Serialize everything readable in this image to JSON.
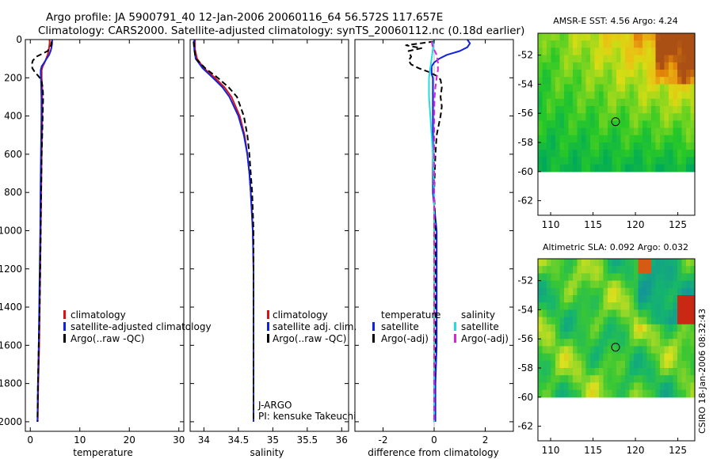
{
  "header": {
    "line1": "Argo profile: JA 5900791_40 12-Jan-2006 20060116_64 56.572S 117.657E",
    "line2": "Climatology: CARS2000. Satellite-adjusted climatology: synTS_20060112.nc (0.18d earlier)"
  },
  "footer": {
    "stamp": "CSIRO 18-Jan-2006 08:32:43"
  },
  "colors": {
    "climatology": "#dd1111",
    "satellite": "#1122dd",
    "argo": "#000000",
    "sal_satellite": "#22dddd",
    "sal_argo": "#dd22dd"
  },
  "chart_data": [
    {
      "id": "temperature",
      "type": "line",
      "xlabel": "temperature",
      "ylabel": "",
      "xlim": [
        -1,
        31
      ],
      "ylim": [
        2050,
        0
      ],
      "x_ticks": [
        0,
        10,
        20,
        30
      ],
      "x_tick_labels": [
        "0",
        "10",
        "20",
        "30"
      ],
      "y_ticks": [
        0,
        200,
        400,
        600,
        800,
        1000,
        1200,
        1400,
        1600,
        1800,
        2000
      ],
      "y_tick_labels": [
        "0",
        "200",
        "400",
        "600",
        "800",
        "1000",
        "1200",
        "1400",
        "1600",
        "1800",
        "2000"
      ],
      "legend": [
        "climatology",
        "satellite-adjusted climatology",
        "Argo(..raw -QC)"
      ],
      "series": [
        {
          "name": "climatology",
          "style": "solid",
          "color": "#dd1111",
          "depth": [
            0,
            20,
            40,
            60,
            80,
            100,
            120,
            140,
            160,
            180,
            200,
            250,
            300,
            400,
            500,
            600,
            800,
            1000,
            1200,
            1400,
            1600,
            1800,
            2000
          ],
          "values": [
            3.9,
            3.9,
            3.8,
            3.7,
            3.5,
            3.2,
            2.9,
            2.5,
            2.3,
            2.3,
            2.3,
            2.4,
            2.4,
            2.4,
            2.35,
            2.3,
            2.2,
            2.1,
            2.0,
            1.9,
            1.8,
            1.6,
            1.5
          ]
        },
        {
          "name": "satellite-adjusted climatology",
          "style": "solid",
          "color": "#1122dd",
          "depth": [
            0,
            20,
            40,
            60,
            80,
            100,
            120,
            140,
            160,
            180,
            200,
            250,
            300,
            400,
            500,
            600,
            800,
            1000,
            1200,
            1400,
            1600,
            1800,
            2000
          ],
          "values": [
            4.4,
            4.4,
            4.3,
            4.1,
            3.8,
            3.3,
            2.8,
            2.3,
            2.1,
            2.1,
            2.15,
            2.2,
            2.25,
            2.25,
            2.2,
            2.15,
            2.05,
            2.0,
            1.9,
            1.8,
            1.7,
            1.55,
            1.45
          ]
        },
        {
          "name": "Argo(..raw -QC)",
          "style": "dashed",
          "color": "#000000",
          "depth": [
            10,
            30,
            60,
            90,
            110,
            130,
            150,
            170,
            190,
            210,
            250,
            300,
            400,
            500,
            600,
            800,
            1000,
            1200,
            1400,
            1600,
            1800,
            2000
          ],
          "values": [
            4.3,
            4.2,
            3.5,
            1.2,
            0.5,
            0.3,
            0.4,
            0.9,
            1.6,
            2.2,
            2.5,
            2.6,
            2.5,
            2.4,
            2.3,
            2.2,
            2.1,
            2.0,
            1.9,
            1.7,
            1.55,
            1.45
          ]
        }
      ]
    },
    {
      "id": "salinity",
      "type": "line",
      "xlabel": "salinity",
      "ylabel": "",
      "xlim": [
        33.8,
        36.1
      ],
      "ylim": [
        2050,
        0
      ],
      "x_ticks": [
        34,
        34.5,
        35,
        35.5,
        36
      ],
      "x_tick_labels": [
        "34",
        "34.5",
        "35",
        "35.5",
        "36"
      ],
      "legend": [
        "climatology",
        "satellite adj. clim.",
        "Argo(..raw -QC)"
      ],
      "annotation": [
        "J-ARGO",
        "PI: kensuke Takeuchi"
      ],
      "series": [
        {
          "name": "climatology",
          "style": "solid",
          "color": "#dd1111",
          "depth": [
            0,
            50,
            100,
            150,
            200,
            250,
            300,
            400,
            500,
            600,
            700,
            800,
            1000,
            1200,
            1400,
            1600,
            1800,
            2000
          ],
          "values": [
            33.87,
            33.87,
            33.9,
            34.0,
            34.16,
            34.3,
            34.4,
            34.52,
            34.59,
            34.63,
            34.66,
            34.68,
            34.71,
            34.72,
            34.72,
            34.72,
            34.72,
            34.72
          ]
        },
        {
          "name": "satellite adj. clim.",
          "style": "solid",
          "color": "#1122dd",
          "depth": [
            0,
            50,
            100,
            150,
            200,
            250,
            300,
            400,
            500,
            600,
            700,
            800,
            1000,
            1200,
            1400,
            1600,
            1800,
            2000
          ],
          "values": [
            33.86,
            33.86,
            33.88,
            33.98,
            34.13,
            34.27,
            34.37,
            34.5,
            34.58,
            34.63,
            34.66,
            34.68,
            34.71,
            34.72,
            34.72,
            34.72,
            34.72,
            34.72
          ]
        },
        {
          "name": "Argo(..raw -QC)",
          "style": "dashed",
          "color": "#000000",
          "depth": [
            10,
            50,
            100,
            150,
            200,
            250,
            300,
            400,
            500,
            600,
            700,
            800,
            1000,
            1200,
            1400,
            1600,
            1800,
            2000
          ],
          "values": [
            33.85,
            33.86,
            33.88,
            34.02,
            34.2,
            34.36,
            34.48,
            34.58,
            34.63,
            34.66,
            34.68,
            34.7,
            34.72,
            34.72,
            34.72,
            34.72,
            34.72,
            34.72
          ]
        }
      ]
    },
    {
      "id": "difference",
      "type": "line",
      "xlabel": "difference from climatology",
      "ylabel": "",
      "xlim": [
        -3.1,
        3.1
      ],
      "ylim": [
        2050,
        0
      ],
      "x_ticks": [
        -2,
        0,
        2
      ],
      "x_tick_labels": [
        "-2",
        "0",
        "2"
      ],
      "legend_groups": [
        {
          "title": "temperature",
          "entries": [
            "satellite",
            "Argo(-adj)"
          ]
        },
        {
          "title": "salinity",
          "entries": [
            "satellite",
            "Argo(-adj)"
          ]
        }
      ],
      "series": [
        {
          "name": "temperature satellite",
          "style": "solid",
          "color": "#1122dd",
          "depth": [
            0,
            20,
            40,
            60,
            80,
            100,
            120,
            140,
            160,
            180,
            200,
            300,
            400,
            600,
            800,
            1000,
            1200,
            1400,
            1600,
            1800,
            2000
          ],
          "values": [
            1.3,
            1.4,
            1.3,
            1.0,
            0.5,
            0.2,
            0.0,
            -0.1,
            -0.1,
            -0.1,
            -0.05,
            -0.05,
            -0.05,
            -0.05,
            -0.05,
            0.1,
            0.1,
            0.1,
            0.1,
            0.05,
            0.05
          ]
        },
        {
          "name": "temperature Argo(-adj)",
          "style": "dashed",
          "color": "#000000",
          "depth": [
            10,
            30,
            45,
            60,
            90,
            110,
            130,
            150,
            170,
            190,
            210,
            250,
            300,
            350,
            400,
            500,
            600,
            800,
            1000,
            1200,
            1400,
            1600,
            1800,
            2000
          ],
          "values": [
            0.0,
            -1.1,
            -0.5,
            -1.0,
            -0.9,
            -1.0,
            -0.9,
            -0.6,
            -0.2,
            0.1,
            0.25,
            0.3,
            0.25,
            0.3,
            0.25,
            0.1,
            0.05,
            0.0,
            0.05,
            0.05,
            0.05,
            0.05,
            0.0,
            0.0
          ]
        },
        {
          "name": "salinity satellite",
          "style": "solid",
          "color": "#22dddd",
          "depth": [
            0,
            100,
            200,
            300,
            400,
            500,
            600,
            800,
            1000,
            1200,
            1400,
            1600,
            1800,
            2000
          ],
          "values": [
            0.0,
            -0.1,
            -0.2,
            -0.2,
            -0.15,
            -0.1,
            -0.05,
            0.0,
            0.0,
            0.0,
            0.0,
            0.0,
            0.0,
            0.0
          ]
        },
        {
          "name": "salinity Argo(-adj)",
          "style": "dashed",
          "color": "#dd22dd",
          "depth": [
            10,
            40,
            80,
            120,
            160,
            200,
            250,
            300,
            400,
            500,
            600,
            800,
            1000,
            1200,
            1400,
            1600,
            1800,
            2000
          ],
          "values": [
            -0.1,
            -0.05,
            0.1,
            0.15,
            0.15,
            0.1,
            0.05,
            0.02,
            0.0,
            0.0,
            0.0,
            0.0,
            0.0,
            0.0,
            0.0,
            0.0,
            0.0,
            0.0
          ]
        }
      ]
    },
    {
      "id": "sst_map",
      "type": "heatmap",
      "title": "AMSR-E SST: 4.56 Argo: 4.24",
      "xlim": [
        108.5,
        127
      ],
      "ylim": [
        -63,
        -50.5
      ],
      "data_ylim": [
        -60,
        -50.5
      ],
      "x_ticks": [
        110,
        115,
        120,
        125
      ],
      "x_tick_labels": [
        "110",
        "115",
        "120",
        "125"
      ],
      "y_ticks": [
        -52,
        -54,
        -56,
        -58,
        -60,
        -62
      ],
      "y_tick_labels": [
        "-52",
        "-54",
        "-56",
        "-58",
        "-60",
        "-62"
      ],
      "marker": [
        117.657,
        -56.572
      ]
    },
    {
      "id": "sla_map",
      "type": "heatmap",
      "title": "Altimetric SLA: 0.092 Argo: 0.032",
      "xlim": [
        108.5,
        127
      ],
      "ylim": [
        -63,
        -50.5
      ],
      "data_ylim": [
        -60,
        -50.5
      ],
      "x_ticks": [
        110,
        115,
        120,
        125
      ],
      "x_tick_labels": [
        "110",
        "115",
        "120",
        "125"
      ],
      "y_ticks": [
        -52,
        -54,
        -56,
        -58,
        -60,
        -62
      ],
      "y_tick_labels": [
        "-52",
        "-54",
        "-56",
        "-58",
        "-60",
        "-62"
      ],
      "marker": [
        117.657,
        -56.572
      ]
    }
  ]
}
